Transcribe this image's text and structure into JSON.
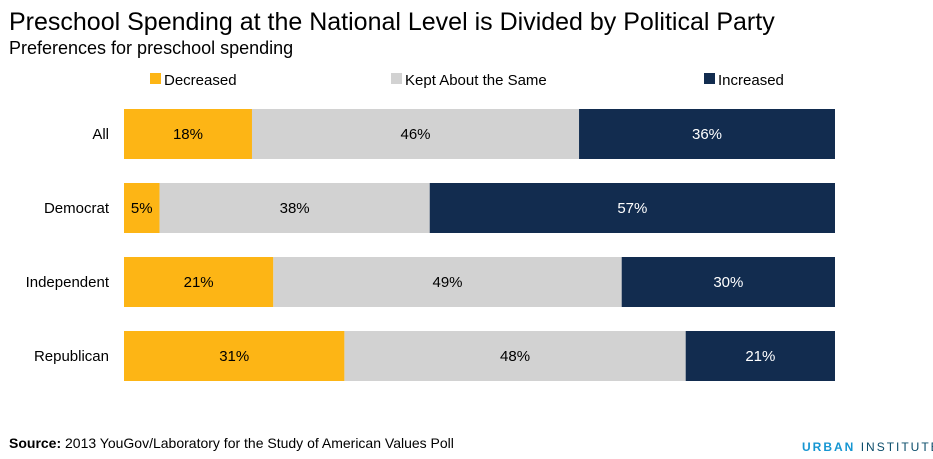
{
  "title": "Preschool Spending at the National Level is Divided by Political Party",
  "subtitle": "Preferences for preschool spending",
  "source_label": "Source:",
  "source_text": "2013 YouGov/Laboratory for the Study of American Values Poll",
  "brand": {
    "part1": "URBAN",
    "part2": "INSTITUTE"
  },
  "chart_data": {
    "type": "bar",
    "orientation": "horizontal",
    "stacked": true,
    "title": "Preschool Spending at the National Level is Divided by Political Party",
    "subtitle": "Preferences for preschool spending",
    "categories": [
      "All",
      "Democrat",
      "Independent",
      "Republican"
    ],
    "xlim": [
      0,
      100
    ],
    "unit": "%",
    "legend_position": "top",
    "grid": false,
    "series": [
      {
        "name": "Decreased",
        "color": "#fdb515",
        "label_color": "#000000",
        "values": [
          18,
          5,
          21,
          31
        ]
      },
      {
        "name": "Kept About the Same",
        "color": "#d2d2d2",
        "label_color": "#000000",
        "values": [
          46,
          38,
          49,
          48
        ]
      },
      {
        "name": "Increased",
        "color": "#122c4f",
        "label_color": "#ffffff",
        "values": [
          36,
          57,
          30,
          21
        ]
      }
    ]
  }
}
